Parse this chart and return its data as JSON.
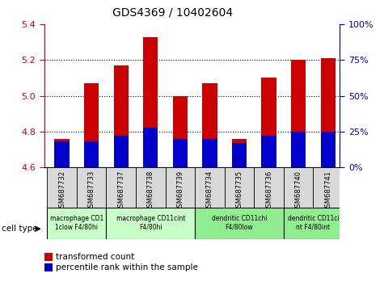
{
  "title": "GDS4369 / 10402604",
  "samples": [
    "GSM687732",
    "GSM687733",
    "GSM687737",
    "GSM687738",
    "GSM687739",
    "GSM687734",
    "GSM687735",
    "GSM687736",
    "GSM687740",
    "GSM687741"
  ],
  "red_values": [
    4.76,
    5.07,
    5.17,
    5.33,
    5.0,
    5.07,
    4.76,
    5.1,
    5.2,
    5.21
  ],
  "blue_pct": [
    18,
    18,
    22,
    28,
    20,
    20,
    17,
    22,
    25,
    25
  ],
  "ylim_left": [
    4.6,
    5.4
  ],
  "ylim_right": [
    0,
    100
  ],
  "yticks_left": [
    4.6,
    4.8,
    5.0,
    5.2,
    5.4
  ],
  "yticks_right": [
    0,
    25,
    50,
    75,
    100
  ],
  "cell_groups": [
    {
      "label": "macrophage CD1\n1clow F4/80hi",
      "start": 0,
      "end": 2,
      "color": "#c8ffc8"
    },
    {
      "label": "macrophage CD11cint\nF4/80hi",
      "start": 2,
      "end": 5,
      "color": "#c8ffc8"
    },
    {
      "label": "dendritic CD11chi\nF4/80low",
      "start": 5,
      "end": 8,
      "color": "#90ee90"
    },
    {
      "label": "dendritic CD11ci\nnt F4/80int",
      "start": 8,
      "end": 10,
      "color": "#90ee90"
    }
  ],
  "bar_color_red": "#cc0000",
  "bar_color_blue": "#0000cc",
  "tick_color_left": "#cc0000",
  "tick_color_right": "#0000cc",
  "bar_width": 0.5,
  "xlim": [
    -0.6,
    9.4
  ],
  "sample_box_color": "#d8d8d8",
  "grid_yticks": [
    4.8,
    5.0,
    5.2
  ]
}
